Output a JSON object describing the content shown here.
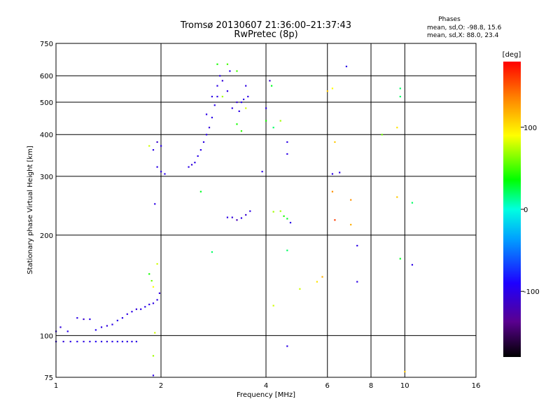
{
  "chart_data": {
    "type": "scatter",
    "title": "Tromsø 20130607 21:36:00–21:37:43",
    "subtitle": "RwPretec (8p)",
    "xlabel": "Frequency [MHz]",
    "ylabel": "Stationary phase Virtual Height [km]",
    "x_scale": "log",
    "y_scale": "log",
    "xlim": [
      1,
      16
    ],
    "ylim": [
      75,
      750
    ],
    "xticks": [
      1,
      2,
      4,
      6,
      8,
      10,
      16
    ],
    "xtick_labels": [
      "1",
      "2",
      "4",
      "6",
      "8",
      "10",
      "16"
    ],
    "yticks": [
      75,
      100,
      200,
      300,
      400,
      500,
      600,
      750
    ],
    "ytick_labels": [
      "75",
      "100",
      "200",
      "300",
      "400",
      "500",
      "600",
      "750"
    ],
    "grid": true,
    "phases_info": {
      "title": "Phases",
      "line1": "mean, sd,O:  -98.8, 15.6",
      "line2": "mean, sd,X:  88.0, 23.4"
    },
    "colorbar": {
      "label": "[deg]",
      "range": [
        -180,
        180
      ],
      "ticks": [
        100,
        0,
        -100
      ],
      "tick_labels": [
        "100",
        "0",
        "-100"
      ]
    },
    "points": [
      [
        1.0,
        96,
        -100
      ],
      [
        1.05,
        96,
        -105
      ],
      [
        1.1,
        96,
        -100
      ],
      [
        1.15,
        96,
        -98
      ],
      [
        1.2,
        96,
        -102
      ],
      [
        1.25,
        96,
        -100
      ],
      [
        1.3,
        96,
        -95
      ],
      [
        1.35,
        96,
        -100
      ],
      [
        1.4,
        96,
        -104
      ],
      [
        1.45,
        96,
        -100
      ],
      [
        1.5,
        96,
        -97
      ],
      [
        1.55,
        96,
        -101
      ],
      [
        1.6,
        96,
        -100
      ],
      [
        1.65,
        96,
        -99
      ],
      [
        1.7,
        96,
        -100
      ],
      [
        1.0,
        103,
        -100
      ],
      [
        1.03,
        106,
        -105
      ],
      [
        1.08,
        103,
        -98
      ],
      [
        1.15,
        113,
        -100
      ],
      [
        1.2,
        112,
        -110
      ],
      [
        1.25,
        112,
        -100
      ],
      [
        1.3,
        104,
        -95
      ],
      [
        1.35,
        106,
        -100
      ],
      [
        1.4,
        107,
        -105
      ],
      [
        1.45,
        108,
        -100
      ],
      [
        1.5,
        111,
        -98
      ],
      [
        1.55,
        113,
        -100
      ],
      [
        1.6,
        116,
        -102
      ],
      [
        1.65,
        118,
        -100
      ],
      [
        1.7,
        120,
        -105
      ],
      [
        1.75,
        120,
        -100
      ],
      [
        1.8,
        122,
        -98
      ],
      [
        1.85,
        124,
        -100
      ],
      [
        1.9,
        125,
        -102
      ],
      [
        1.95,
        128,
        -100
      ],
      [
        1.98,
        134,
        -105
      ],
      [
        1.85,
        153,
        40
      ],
      [
        1.88,
        146,
        60
      ],
      [
        1.9,
        140,
        90
      ],
      [
        1.95,
        164,
        80
      ],
      [
        1.9,
        87,
        70
      ],
      [
        1.92,
        102,
        80
      ],
      [
        1.9,
        76,
        -100
      ],
      [
        1.85,
        370,
        80
      ],
      [
        1.9,
        360,
        -100
      ],
      [
        1.95,
        380,
        -110
      ],
      [
        2.0,
        370,
        -100
      ],
      [
        1.95,
        320,
        -100
      ],
      [
        2.0,
        310,
        -105
      ],
      [
        2.05,
        305,
        -98
      ],
      [
        1.92,
        248,
        -100
      ],
      [
        2.4,
        320,
        -100
      ],
      [
        2.45,
        325,
        -105
      ],
      [
        2.5,
        330,
        -100
      ],
      [
        2.55,
        345,
        -98
      ],
      [
        2.6,
        360,
        -100
      ],
      [
        2.65,
        380,
        -102
      ],
      [
        2.7,
        400,
        -100
      ],
      [
        2.75,
        420,
        -105
      ],
      [
        2.8,
        450,
        -100
      ],
      [
        2.85,
        490,
        -98
      ],
      [
        2.9,
        520,
        -100
      ],
      [
        2.7,
        460,
        -100
      ],
      [
        2.8,
        520,
        -102
      ],
      [
        2.9,
        560,
        -100
      ],
      [
        2.95,
        600,
        -100
      ],
      [
        3.0,
        580,
        -105
      ],
      [
        3.1,
        540,
        -100
      ],
      [
        3.15,
        620,
        -98
      ],
      [
        3.0,
        520,
        70
      ],
      [
        2.9,
        650,
        40
      ],
      [
        3.1,
        650,
        50
      ],
      [
        3.3,
        620,
        50
      ],
      [
        3.2,
        480,
        -100
      ],
      [
        3.3,
        500,
        -105
      ],
      [
        3.35,
        470,
        -100
      ],
      [
        3.4,
        500,
        -98
      ],
      [
        3.45,
        510,
        -100
      ],
      [
        3.5,
        560,
        -102
      ],
      [
        3.55,
        520,
        -100
      ],
      [
        3.3,
        430,
        40
      ],
      [
        3.4,
        410,
        45
      ],
      [
        3.5,
        480,
        80
      ],
      [
        2.6,
        270,
        30
      ],
      [
        2.8,
        178,
        20
      ],
      [
        3.1,
        226,
        -100
      ],
      [
        3.2,
        226,
        -105
      ],
      [
        3.3,
        222,
        -120
      ],
      [
        3.4,
        225,
        -100
      ],
      [
        3.5,
        230,
        -110
      ],
      [
        3.6,
        236,
        -100
      ],
      [
        3.9,
        310,
        -100
      ],
      [
        4.0,
        480,
        -100
      ],
      [
        4.1,
        580,
        -110
      ],
      [
        4.15,
        560,
        30
      ],
      [
        4.0,
        440,
        40
      ],
      [
        4.2,
        420,
        20
      ],
      [
        4.4,
        440,
        70
      ],
      [
        4.2,
        235,
        70
      ],
      [
        4.4,
        236,
        70
      ],
      [
        4.5,
        228,
        40
      ],
      [
        4.6,
        224,
        30
      ],
      [
        4.7,
        218,
        -100
      ],
      [
        4.6,
        380,
        -100
      ],
      [
        4.6,
        350,
        -100
      ],
      [
        4.6,
        180,
        20
      ],
      [
        4.6,
        93,
        -100
      ],
      [
        4.2,
        123,
        80
      ],
      [
        5.0,
        138,
        80
      ],
      [
        5.6,
        145,
        100
      ],
      [
        5.8,
        150,
        120
      ],
      [
        6.0,
        540,
        110
      ],
      [
        6.2,
        550,
        90
      ],
      [
        6.3,
        380,
        110
      ],
      [
        6.2,
        305,
        -100
      ],
      [
        6.5,
        308,
        -100
      ],
      [
        6.2,
        270,
        130
      ],
      [
        6.3,
        222,
        160
      ],
      [
        7.0,
        255,
        130
      ],
      [
        7.0,
        215,
        120
      ],
      [
        6.8,
        640,
        -100
      ],
      [
        7.3,
        186,
        -100
      ],
      [
        7.3,
        145,
        -100
      ],
      [
        8.6,
        400,
        60
      ],
      [
        9.5,
        420,
        100
      ],
      [
        9.5,
        260,
        110
      ],
      [
        9.7,
        520,
        20
      ],
      [
        9.7,
        550,
        20
      ],
      [
        9.7,
        170,
        30
      ],
      [
        10.5,
        250,
        20
      ],
      [
        10.5,
        163,
        -100
      ],
      [
        10.0,
        78,
        110
      ]
    ]
  }
}
